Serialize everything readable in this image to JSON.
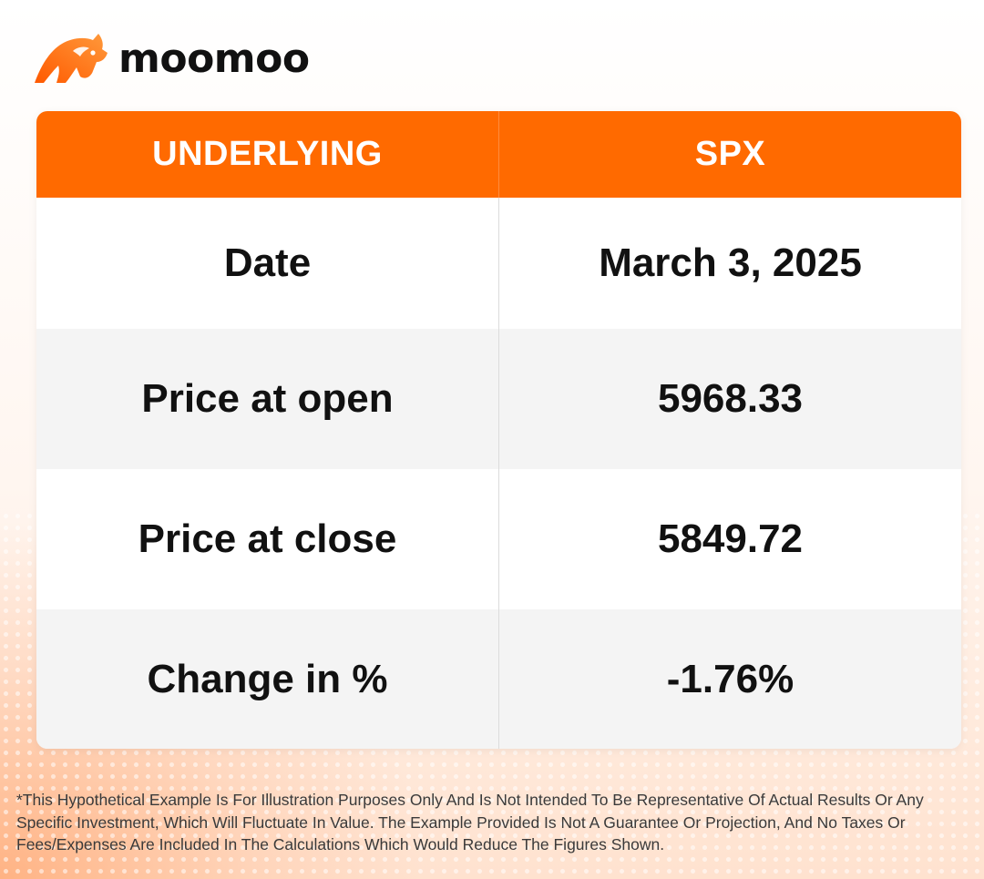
{
  "brand": {
    "logo_icon": "moomoo-bull-icon",
    "name": "moomoo",
    "accent": "#ff6a00"
  },
  "table": {
    "header": {
      "left": "UNDERLYING",
      "right": "SPX"
    },
    "rows": [
      {
        "label": "Date",
        "value": "March 3, 2025"
      },
      {
        "label": "Price at open",
        "value": "5968.33"
      },
      {
        "label": "Price at close",
        "value": "5849.72"
      },
      {
        "label": "Change in %",
        "value": "-1.76%"
      }
    ]
  },
  "disclaimer": "*This Hypothetical Example Is For Illustration Purposes Only And Is Not Intended To Be Representative Of Actual Results Or Any Specific Investment, Which Will Fluctuate In Value. The Example Provided Is Not A Guarantee Or Projection, And No Taxes Or Fees/Expenses Are Included In The Calculations Which Would Reduce The Figures Shown."
}
